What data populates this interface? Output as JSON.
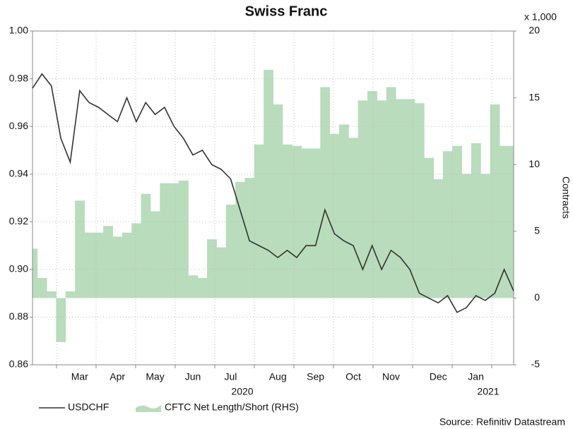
{
  "chart_data": {
    "type": "line",
    "title": "Swiss Franc",
    "categories": [
      null,
      null,
      null,
      null,
      null,
      "Mar",
      null,
      null,
      null,
      "Apr",
      null,
      null,
      null,
      "May",
      null,
      null,
      null,
      "Jun",
      null,
      null,
      null,
      "Jul",
      null,
      null,
      null,
      null,
      "Aug",
      null,
      null,
      null,
      "Sep",
      null,
      null,
      null,
      "Oct",
      null,
      null,
      null,
      "Nov",
      null,
      null,
      null,
      null,
      "Dec",
      null,
      null,
      null,
      "Jan",
      null,
      null,
      null,
      null
    ],
    "x_group_labels": [
      "2020",
      "2021"
    ],
    "series": [
      {
        "name": "USDCHF",
        "color": "#333333",
        "type": "line",
        "values": [
          0.976,
          0.982,
          0.977,
          0.955,
          0.945,
          0.975,
          0.97,
          0.968,
          0.965,
          0.962,
          0.972,
          0.962,
          0.97,
          0.965,
          0.968,
          0.96,
          0.955,
          0.948,
          0.95,
          0.944,
          0.942,
          0.938,
          0.925,
          0.912,
          0.91,
          0.908,
          0.905,
          0.908,
          0.905,
          0.91,
          0.91,
          0.925,
          0.915,
          0.912,
          0.91,
          0.9,
          0.91,
          0.9,
          0.908,
          0.905,
          0.9,
          0.89,
          0.888,
          0.886,
          0.889,
          0.882,
          0.884,
          0.889,
          0.887,
          0.89,
          0.9,
          0.891
        ]
      },
      {
        "name": "CFTC Net Length/Short (RHS)",
        "color": "#b9dcbc",
        "type": "area",
        "axis": "y2",
        "values": [
          3.7,
          1.5,
          0.5,
          -3.3,
          0.5,
          7.3,
          4.9,
          4.9,
          5.4,
          4.6,
          4.9,
          5.6,
          7.8,
          6.5,
          8.6,
          8.6,
          8.8,
          1.7,
          1.5,
          4.4,
          3.8,
          7.0,
          8.7,
          9.0,
          11.5,
          17.1,
          14.5,
          11.5,
          11.4,
          11.2,
          11.2,
          15.8,
          12.3,
          13.0,
          12.0,
          14.8,
          15.5,
          14.8,
          15.8,
          14.9,
          14.9,
          14.6,
          10.5,
          8.9,
          11.0,
          11.4,
          9.3,
          11.6,
          9.3,
          14.5,
          11.4,
          11.4
        ]
      }
    ],
    "ylim": [
      0.86,
      1.0
    ],
    "yticks": [
      {
        "value": 0.86,
        "label": "0.86"
      },
      {
        "value": 0.88,
        "label": "0.88"
      },
      {
        "value": 0.9,
        "label": "0.90"
      },
      {
        "value": 0.92,
        "label": "0.92"
      },
      {
        "value": 0.94,
        "label": "0.94"
      },
      {
        "value": 0.96,
        "label": "0.96"
      },
      {
        "value": 0.98,
        "label": "0.98"
      },
      {
        "value": 1.0,
        "label": "1.00"
      }
    ],
    "y2lim": [
      -5,
      20
    ],
    "y2ticks": [
      -5,
      0,
      5,
      10,
      15,
      20
    ],
    "y2_unit": "x 1,000",
    "y2_label": "Contracts",
    "source": "Source: Refinitiv Datastream",
    "grid": true
  }
}
